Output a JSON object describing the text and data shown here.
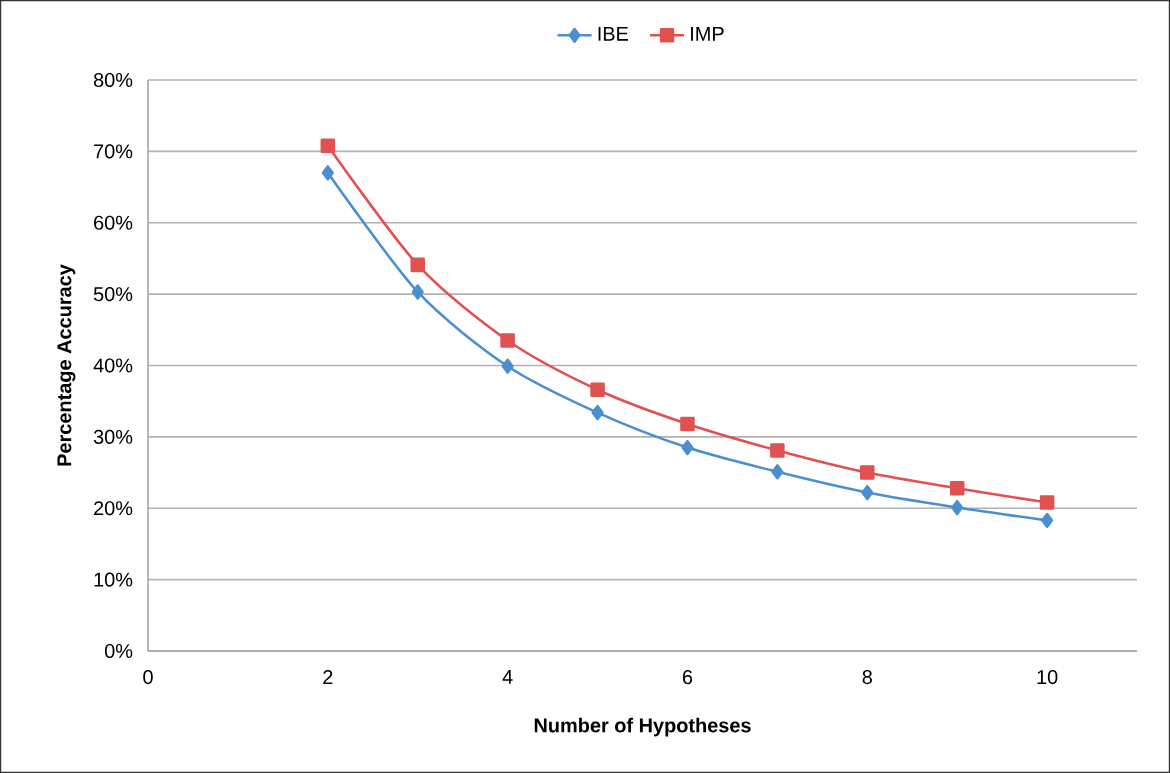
{
  "chart_data": {
    "type": "line",
    "xlabel": "Number of Hypotheses",
    "ylabel": "Percentage Accuracy",
    "x": [
      2,
      3,
      4,
      5,
      6,
      7,
      8,
      9,
      10
    ],
    "series": [
      {
        "name": "IBE",
        "color": "#4a8fd0",
        "marker": "diamond",
        "values": [
          67.0,
          50.3,
          39.9,
          33.4,
          28.5,
          25.1,
          22.2,
          20.1,
          18.3
        ]
      },
      {
        "name": "IMP",
        "color": "#e05252",
        "marker": "square",
        "values": [
          70.8,
          54.1,
          43.5,
          36.6,
          31.8,
          28.1,
          25.0,
          22.8,
          20.8
        ]
      }
    ],
    "xlim": [
      0,
      11
    ],
    "xticks": [
      0,
      2,
      4,
      6,
      8,
      10
    ],
    "ylim": [
      0,
      80
    ],
    "yticks": [
      {
        "value": 0,
        "label": "0%"
      },
      {
        "value": 10,
        "label": "10%"
      },
      {
        "value": 20,
        "label": "20%"
      },
      {
        "value": 30,
        "label": "30%"
      },
      {
        "value": 40,
        "label": "40%"
      },
      {
        "value": 50,
        "label": "50%"
      },
      {
        "value": 60,
        "label": "60%"
      },
      {
        "value": 70,
        "label": "70%"
      },
      {
        "value": 80,
        "label": "80%"
      }
    ],
    "grid": "y",
    "legend": "top"
  }
}
